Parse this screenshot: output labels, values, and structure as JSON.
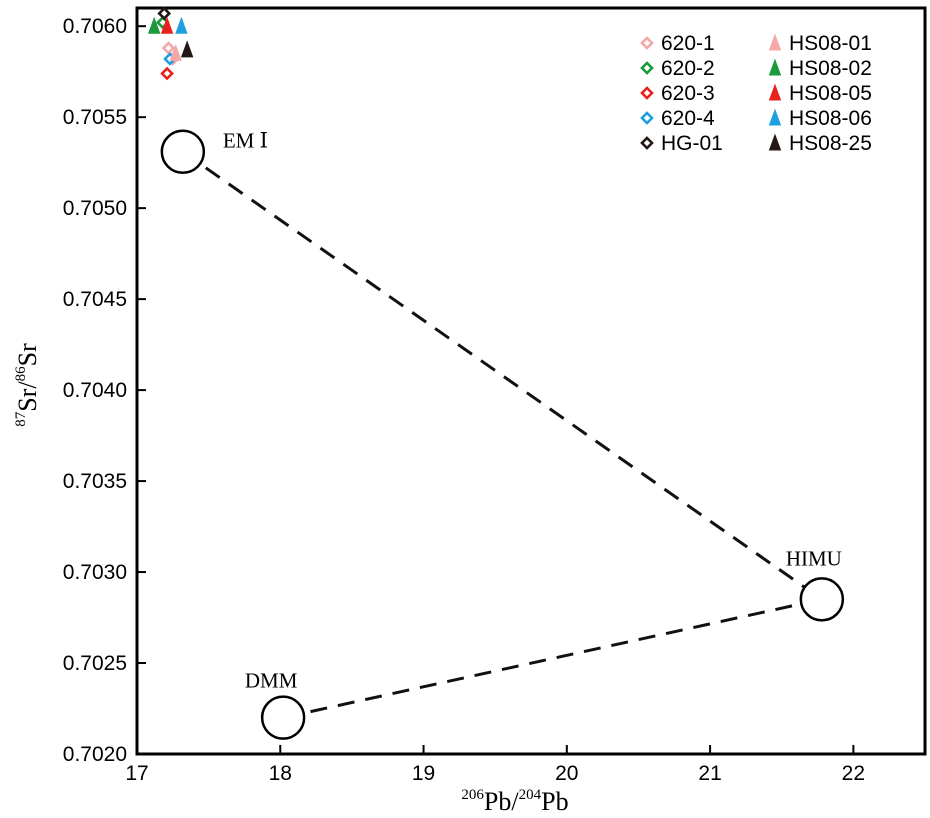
{
  "chart_data": {
    "type": "scatter",
    "xlabel": {
      "sup": "206",
      "base1": "Pb/",
      "sup2": "204",
      "base2": "Pb"
    },
    "ylabel": {
      "sup": "87",
      "base1": "Sr/",
      "sup2": "86",
      "base2": "Sr"
    },
    "xlim": [
      17,
      22.5
    ],
    "ylim": [
      0.702,
      0.7061
    ],
    "x_ticks": [
      "17",
      "18",
      "19",
      "20",
      "21",
      "22"
    ],
    "y_ticks": [
      "0.7020",
      "0.7025",
      "0.7030",
      "0.7035",
      "0.7040",
      "0.7045",
      "0.7050",
      "0.7055",
      "0.7060"
    ],
    "grid": false,
    "legend_position": "top-right",
    "series": [
      {
        "name": "620-1",
        "marker": "diamond",
        "color": "#f4a9a8",
        "points": [
          [
            17.22,
            0.70588
          ],
          [
            17.25,
            0.70582
          ]
        ]
      },
      {
        "name": "620-2",
        "marker": "diamond",
        "color": "#1a9a3a",
        "points": [
          [
            17.18,
            0.70602
          ]
        ]
      },
      {
        "name": "620-3",
        "marker": "diamond",
        "color": "#e8221c",
        "points": [
          [
            17.21,
            0.70574
          ]
        ]
      },
      {
        "name": "620-4",
        "marker": "diamond",
        "color": "#1ea0e0",
        "points": [
          [
            17.23,
            0.70582
          ]
        ]
      },
      {
        "name": "HG-01",
        "marker": "diamond",
        "color": "#231815",
        "points": [
          [
            17.19,
            0.70607
          ]
        ]
      },
      {
        "name": "HS08-01",
        "marker": "triangle",
        "color": "#f4a9a8",
        "points": [
          [
            17.27,
            0.70585
          ]
        ]
      },
      {
        "name": "HS08-02",
        "marker": "triangle",
        "color": "#1a9a3a",
        "points": [
          [
            17.12,
            0.706
          ]
        ]
      },
      {
        "name": "HS08-05",
        "marker": "triangle",
        "color": "#e8221c",
        "points": [
          [
            17.21,
            0.706
          ]
        ]
      },
      {
        "name": "HS08-06",
        "marker": "triangle",
        "color": "#1ea0e0",
        "points": [
          [
            17.31,
            0.706
          ]
        ]
      },
      {
        "name": "HS08-25",
        "marker": "triangle",
        "color": "#231815",
        "points": [
          [
            17.35,
            0.70587
          ]
        ]
      }
    ],
    "end_members": [
      {
        "name": "EM Ⅰ",
        "x": 17.32,
        "y": 0.70531
      },
      {
        "name": "HIMU",
        "x": 21.78,
        "y": 0.70285
      },
      {
        "name": "DMM",
        "x": 18.02,
        "y": 0.7022
      }
    ],
    "mixing_lines": [
      [
        "EM Ⅰ",
        "HIMU"
      ],
      [
        "DMM",
        "HIMU"
      ]
    ]
  }
}
